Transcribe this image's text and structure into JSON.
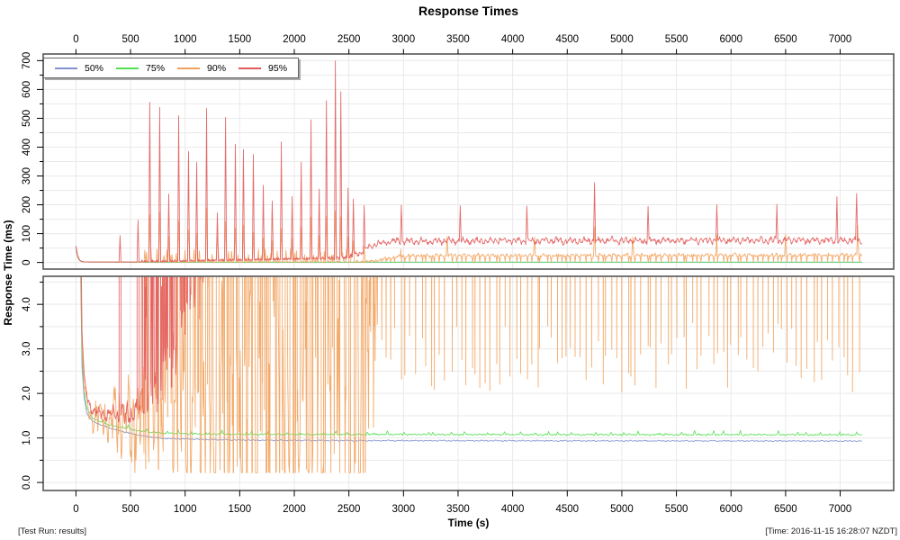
{
  "title": "Response Times",
  "footer_left": "[Test Run: results]",
  "footer_right": "[Time: 2016-11-15 16:28:07 NZDT]",
  "chart_data": {
    "type": "line",
    "title": "Response Times",
    "xlabel": "Time (s)",
    "ylabel": "Response Time (ms)",
    "grid": true,
    "grid_color": "#e9e9e9",
    "border_color": "#555555",
    "xlim": [
      -300,
      7490
    ],
    "x_ticks": [
      0,
      500,
      1000,
      1500,
      2000,
      2500,
      3000,
      3500,
      4000,
      4500,
      5000,
      5500,
      6000,
      6500,
      7000
    ],
    "x_tick_labels": [
      "0",
      "500",
      "1000",
      "1500",
      "2000",
      "2500",
      "3000",
      "3500",
      "4000",
      "4500",
      "5000",
      "5500",
      "6000",
      "6500",
      "7000"
    ],
    "spike_width": 9,
    "panels": [
      {
        "name": "full-scale-ms",
        "ylim": [
          -23,
          723
        ],
        "y_major": [
          0,
          100,
          200,
          300,
          400,
          500,
          600,
          700
        ],
        "y_labels": [
          "0",
          "100",
          "200",
          "300",
          "400",
          "500",
          "600",
          "700"
        ],
        "y_minor_step": 50
      },
      {
        "name": "zoomed-ms",
        "ylim": [
          -0.18,
          4.63
        ],
        "y_major": [
          0,
          1,
          2,
          3,
          4
        ],
        "y_labels": [
          "0.0",
          "1.0",
          "2.0",
          "3.0",
          "4.0"
        ],
        "y_minor_step": 0.5
      }
    ],
    "legend": {
      "position": "top-left",
      "entries": [
        {
          "label": "50%",
          "color": "#8191cf"
        },
        {
          "label": "75%",
          "color": "#52e052"
        },
        {
          "label": "90%",
          "color": "#f2a25c"
        },
        {
          "label": "95%",
          "color": "#e25b5b"
        }
      ]
    },
    "series": [
      {
        "name": "50%",
        "color": "#8191cf",
        "baseline": [
          [
            0,
            45
          ],
          [
            15,
            18
          ],
          [
            35,
            6
          ],
          [
            55,
            2.6
          ],
          [
            75,
            1.9
          ],
          [
            100,
            1.55
          ],
          [
            150,
            1.38
          ],
          [
            250,
            1.27
          ],
          [
            400,
            1.16
          ],
          [
            600,
            1.05
          ],
          [
            800,
            0.99
          ],
          [
            1100,
            0.97
          ],
          [
            1600,
            0.95
          ],
          [
            2600,
            0.94
          ],
          [
            7200,
            0.93
          ]
        ],
        "noise": [
          [
            0,
            0.015
          ]
        ]
      },
      {
        "name": "75%",
        "color": "#52e052",
        "baseline": [
          [
            0,
            48
          ],
          [
            15,
            20
          ],
          [
            35,
            6.5
          ],
          [
            55,
            2.9
          ],
          [
            75,
            2.05
          ],
          [
            100,
            1.65
          ],
          [
            150,
            1.45
          ],
          [
            250,
            1.33
          ],
          [
            400,
            1.24
          ],
          [
            600,
            1.15
          ],
          [
            800,
            1.11
          ],
          [
            1100,
            1.09
          ],
          [
            1600,
            1.08
          ],
          [
            7200,
            1.07
          ]
        ],
        "noise": [
          [
            0,
            0.02
          ]
        ],
        "spike_train": {
          "from": 250,
          "to": 7200,
          "step": 140,
          "peak_min": 0.03,
          "peak_max": 0.09,
          "width": 12
        }
      },
      {
        "name": "90%",
        "color": "#f2a25c",
        "baseline": [
          [
            0,
            52
          ],
          [
            15,
            22
          ],
          [
            35,
            7
          ],
          [
            55,
            3.1
          ],
          [
            75,
            2.2
          ],
          [
            100,
            1.75
          ],
          [
            150,
            1.5
          ],
          [
            250,
            1.4
          ],
          [
            500,
            1.37
          ],
          [
            1200,
            1.39
          ],
          [
            1800,
            1.42
          ],
          [
            2300,
            1.45
          ],
          [
            2520,
            1.55
          ],
          [
            2620,
            2.1
          ],
          [
            2700,
            3.6
          ],
          [
            2760,
            7
          ],
          [
            2830,
            13
          ],
          [
            2950,
            20
          ],
          [
            3100,
            24
          ],
          [
            7200,
            26
          ]
        ],
        "noise": [
          [
            0,
            0.05
          ],
          [
            2950,
            7
          ]
        ],
        "spikes": [
          [
            676,
            165
          ],
          [
            767,
            150
          ],
          [
            850,
            90
          ],
          [
            941,
            140
          ],
          [
            1031,
            110
          ],
          [
            1106,
            100
          ],
          [
            1196,
            150
          ],
          [
            1295,
            70
          ],
          [
            1370,
            140
          ],
          [
            1460,
            115
          ],
          [
            1534,
            110
          ],
          [
            1625,
            105
          ],
          [
            1716,
            80
          ],
          [
            1798,
            75
          ],
          [
            1881,
            115
          ],
          [
            1980,
            78
          ],
          [
            2063,
            95
          ],
          [
            2153,
            135
          ],
          [
            2228,
            90
          ],
          [
            2294,
            150
          ],
          [
            2376,
            180
          ],
          [
            2426,
            160
          ],
          [
            2492,
            85
          ],
          [
            2541,
            75
          ],
          [
            2640,
            60
          ],
          [
            2980,
            62
          ],
          [
            3400,
            68
          ],
          [
            4200,
            60
          ],
          [
            4750,
            98
          ],
          [
            5100,
            64
          ],
          [
            5870,
            72
          ],
          [
            6500,
            68
          ],
          [
            7160,
            100
          ]
        ],
        "spike_train": {
          "from": 620,
          "to": 2560,
          "step": 30,
          "peak_min": 5,
          "peak_max": 45,
          "width": 7
        },
        "dip_train": {
          "from": 2700,
          "to": 7190,
          "step": 46,
          "low_min": 2.0,
          "low_max": 3.6,
          "width": 7
        }
      },
      {
        "name": "95%",
        "color": "#e25b5b",
        "baseline": [
          [
            0,
            58
          ],
          [
            15,
            25
          ],
          [
            35,
            8
          ],
          [
            55,
            3.4
          ],
          [
            75,
            2.4
          ],
          [
            100,
            1.9
          ],
          [
            150,
            1.62
          ],
          [
            250,
            1.52
          ],
          [
            450,
            1.5
          ],
          [
            560,
            1.6
          ],
          [
            650,
            1.85
          ],
          [
            750,
            2.2
          ],
          [
            850,
            2.7
          ],
          [
            950,
            3.3
          ],
          [
            1050,
            4.1
          ],
          [
            1200,
            5.2
          ],
          [
            1400,
            6.5
          ],
          [
            1700,
            8.5
          ],
          [
            2100,
            11
          ],
          [
            2400,
            14
          ],
          [
            2550,
            20
          ],
          [
            2650,
            45
          ],
          [
            2750,
            65
          ],
          [
            2900,
            74
          ],
          [
            7200,
            77
          ]
        ],
        "noise": [
          [
            0,
            0.05
          ],
          [
            560,
            0.35
          ],
          [
            900,
            0.8
          ],
          [
            1400,
            1.2
          ],
          [
            2100,
            1.5
          ],
          [
            2650,
            13
          ],
          [
            3000,
            14
          ]
        ],
        "spikes": [
          [
            404,
            92
          ],
          [
            569,
            145
          ],
          [
            676,
            550
          ],
          [
            767,
            535
          ],
          [
            850,
            230
          ],
          [
            941,
            505
          ],
          [
            1031,
            380
          ],
          [
            1106,
            340
          ],
          [
            1196,
            528
          ],
          [
            1295,
            165
          ],
          [
            1370,
            497
          ],
          [
            1460,
            403
          ],
          [
            1534,
            384
          ],
          [
            1625,
            363
          ],
          [
            1716,
            253
          ],
          [
            1798,
            213
          ],
          [
            1881,
            409
          ],
          [
            1980,
            216
          ],
          [
            2063,
            331
          ],
          [
            2153,
            481
          ],
          [
            2228,
            240
          ],
          [
            2294,
            544
          ],
          [
            2376,
            688
          ],
          [
            2426,
            572
          ],
          [
            2492,
            244
          ],
          [
            2541,
            206
          ],
          [
            2640,
            153
          ],
          [
            2980,
            128
          ],
          [
            3520,
            122
          ],
          [
            4130,
            118
          ],
          [
            4750,
            205
          ],
          [
            5240,
            122
          ],
          [
            5870,
            132
          ],
          [
            6420,
            128
          ],
          [
            6970,
            148
          ],
          [
            7150,
            162
          ]
        ],
        "spike_train": {
          "from": 600,
          "to": 2580,
          "step": 13,
          "peak_min": 2.2,
          "peak_max": 6.5,
          "width": 5
        }
      }
    ]
  }
}
